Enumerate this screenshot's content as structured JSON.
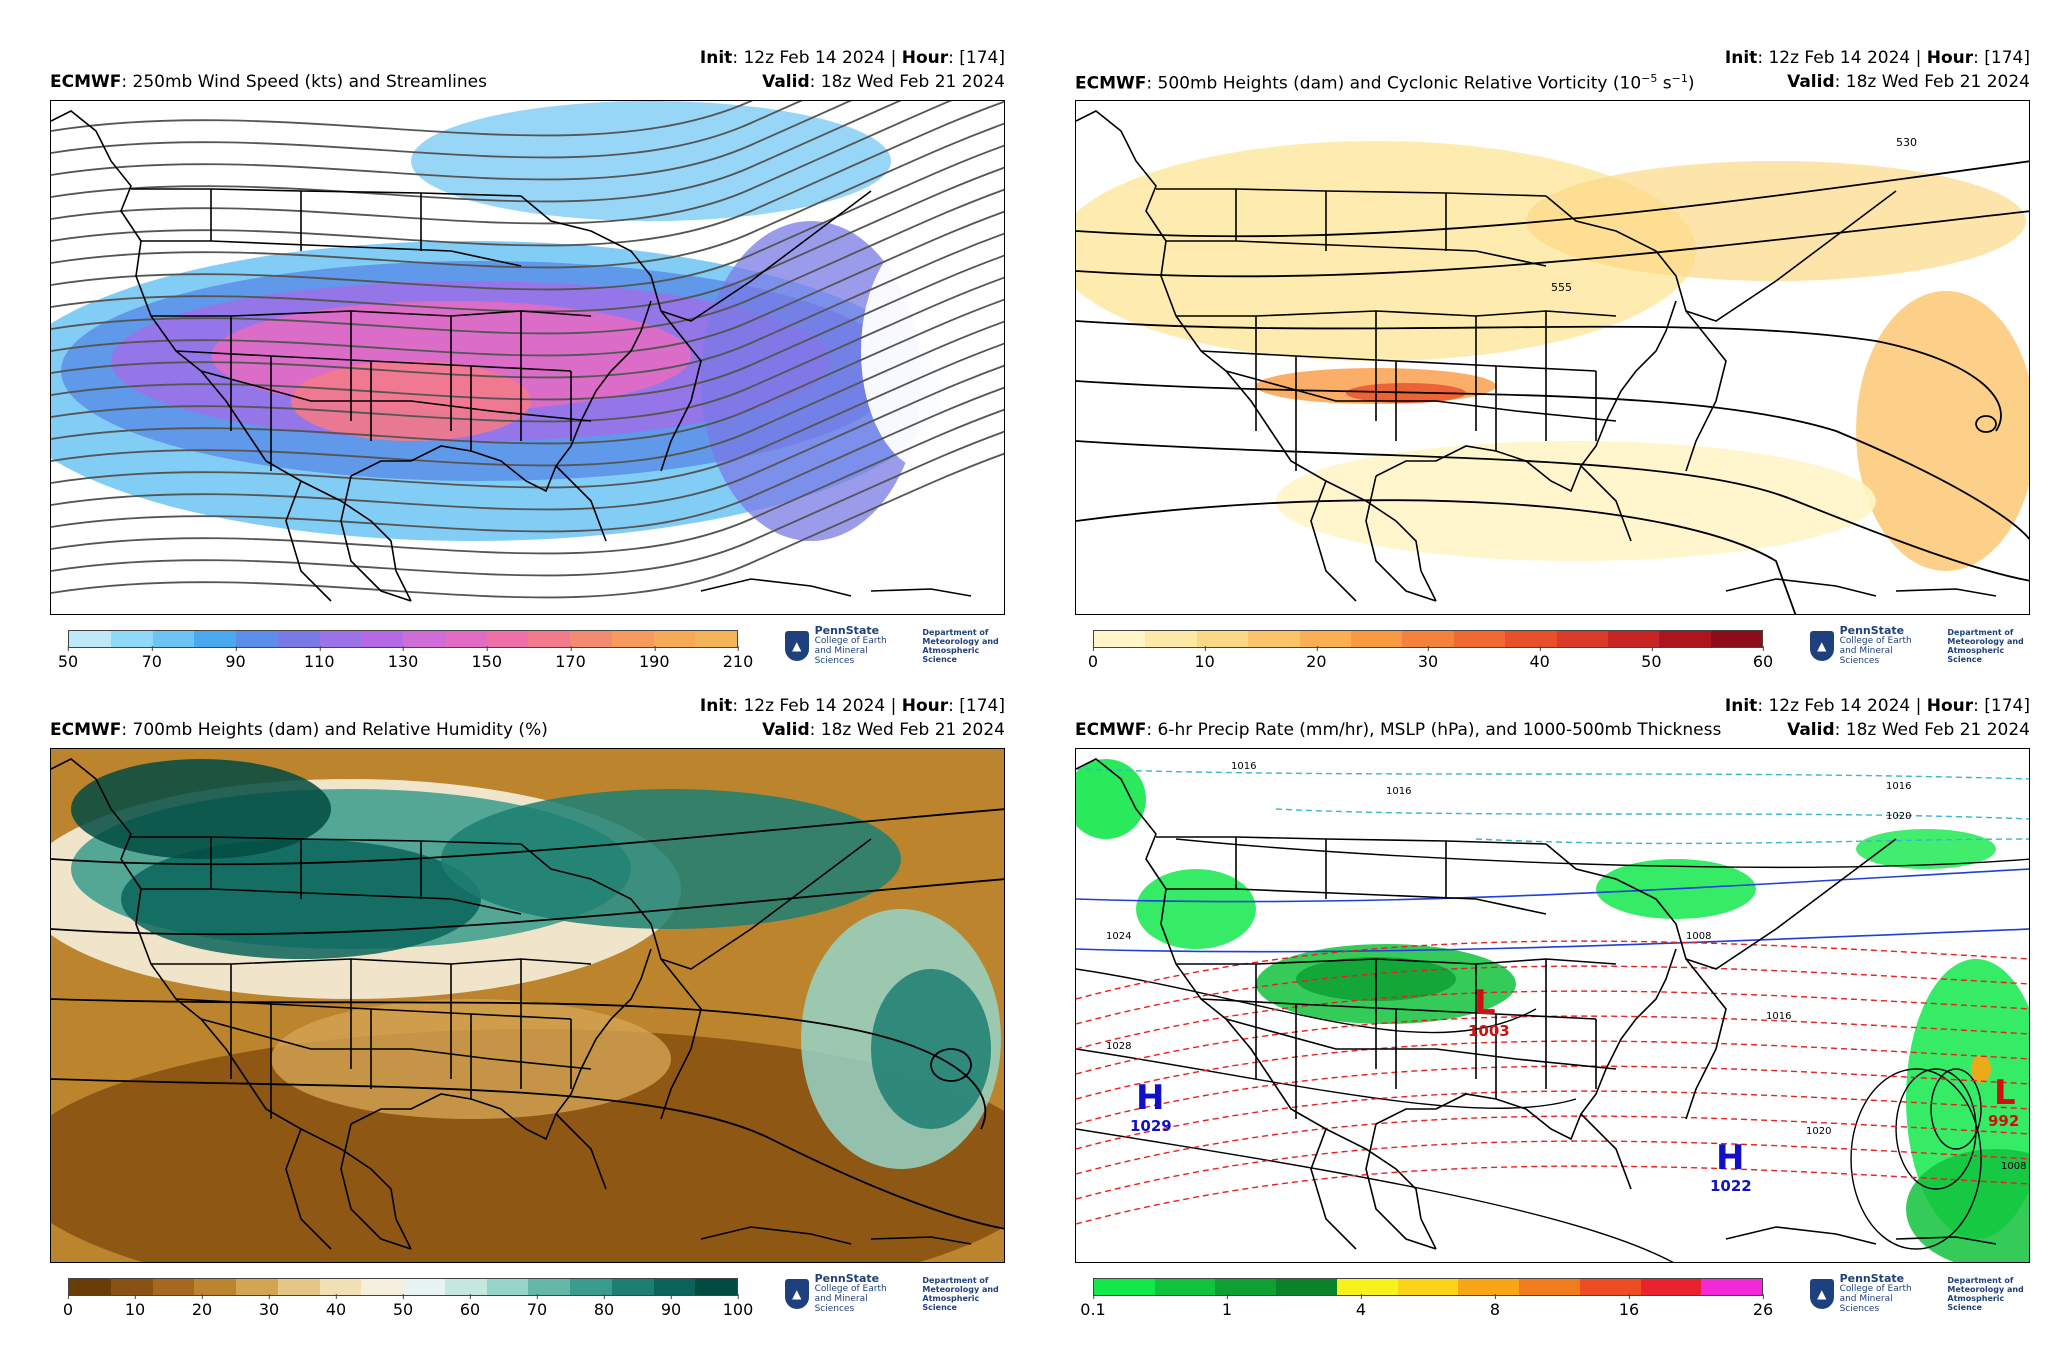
{
  "panels": [
    {
      "model": "ECMWF",
      "title": ": 250mb Wind Speed (kts) and Streamlines",
      "init_label": "Init",
      "init_text": ": 12z Feb 14 2024 | ",
      "hour_label": "Hour",
      "hour_text": ": [174]",
      "valid_label": "Valid",
      "valid_text": ": 18z Wed Feb 21 2024",
      "colorbar": {
        "colors": [
          "#bfe9fb",
          "#8ed8f8",
          "#6cc4f4",
          "#4aa8ec",
          "#5a8ee8",
          "#7a7ae6",
          "#9b72e8",
          "#b46ae4",
          "#d06cd8",
          "#e26cc4",
          "#ee70a6",
          "#f27a8a",
          "#f58a72",
          "#f69a60",
          "#f5aa58",
          "#f3b458"
        ],
        "ticks": [
          "50",
          "70",
          "90",
          "110",
          "130",
          "150",
          "170",
          "190",
          "210"
        ]
      }
    },
    {
      "model": "ECMWF",
      "title": ": 500mb Heights (dam) and Cyclonic Relative Vorticity (10",
      "title_sup": "−5",
      "title_end": " s",
      "title_sup2": "−1",
      "title_close": ")",
      "init_label": "Init",
      "init_text": ": 12z Feb 14 2024 | ",
      "hour_label": "Hour",
      "hour_text": ": [174]",
      "valid_label": "Valid",
      "valid_text": ": 18z Wed Feb 21 2024",
      "contour_labels": [
        "530",
        "555"
      ],
      "colorbar": {
        "colors": [
          "#fff5c8",
          "#fde9a6",
          "#fcd886",
          "#fbc46a",
          "#fab052",
          "#f99a42",
          "#f5823a",
          "#ef6a32",
          "#e8502c",
          "#dc3a28",
          "#c82424",
          "#ac1420",
          "#8e0c1c"
        ],
        "ticks": [
          "0",
          "10",
          "20",
          "30",
          "40",
          "50",
          "60"
        ]
      }
    },
    {
      "model": "ECMWF",
      "title": ": 700mb Heights (dam) and Relative Humidity (%)",
      "init_label": "Init",
      "init_text": ": 12z Feb 14 2024 | ",
      "hour_label": "Hour",
      "hour_text": ": [174]",
      "valid_label": "Valid",
      "valid_text": ": 18z Wed Feb 21 2024",
      "colorbar": {
        "colors": [
          "#6b3d06",
          "#8a5212",
          "#a5681e",
          "#bd842e",
          "#d3a452",
          "#e6c685",
          "#f2e0b5",
          "#f5efdc",
          "#e8f4f1",
          "#c4e8e0",
          "#96d4c7",
          "#64b8a8",
          "#3a9c8c",
          "#1c7f72",
          "#0b645a",
          "#024b42"
        ],
        "ticks": [
          "0",
          "10",
          "20",
          "30",
          "40",
          "50",
          "60",
          "70",
          "80",
          "90",
          "100"
        ]
      }
    },
    {
      "model": "ECMWF",
      "title": ": 6-hr Precip Rate (mm/hr), MSLP (hPa), and 1000-500mb Thickness",
      "init_label": "Init",
      "init_text": ": 12z Feb 14 2024 | ",
      "hour_label": "Hour",
      "hour_text": ": [174]",
      "valid_label": "Valid",
      "valid_text": ": 18z Wed Feb 21 2024",
      "pressure_centers": [
        {
          "type": "H",
          "value": "1029"
        },
        {
          "type": "L",
          "value": "1003"
        },
        {
          "type": "H",
          "value": "1022"
        },
        {
          "type": "L",
          "value": "992"
        }
      ],
      "isobar_labels": [
        "1016",
        "1016",
        "1024",
        "1028",
        "1008",
        "1016",
        "1020",
        "1016",
        "1020",
        "1008"
      ],
      "colorbar": {
        "colors": [
          "#13e84a",
          "#10c23c",
          "#0ea032",
          "#0a822a",
          "#f6f31c",
          "#fad416",
          "#f6a616",
          "#f07c1c",
          "#ee4c22",
          "#ea2230",
          "#f22ad6"
        ],
        "ticks": [
          "0.1",
          "1",
          "4",
          "8",
          "16",
          "26"
        ]
      }
    }
  ],
  "branding": {
    "university": "PennState",
    "college_line1": "College of Earth",
    "college_line2": "and Mineral Sciences",
    "dept_line1": "Department of",
    "dept_line2": "Meteorology and",
    "dept_line3": "Atmospheric Science"
  }
}
